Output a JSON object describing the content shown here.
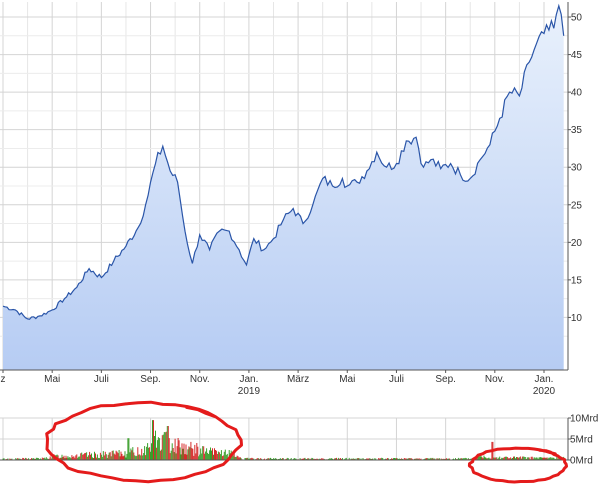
{
  "chart_data": [
    {
      "type": "area",
      "xlabel": "",
      "ylabel": "",
      "ylim": [
        3,
        52
      ],
      "x_tick_labels": [
        {
          "label": "z",
          "pos": 0.0
        },
        {
          "label": "Mai",
          "pos": 1.0
        },
        {
          "label": "Juli",
          "pos": 2.0
        },
        {
          "label": "Sep.",
          "pos": 3.0
        },
        {
          "label": "Nov.",
          "pos": 4.0
        },
        {
          "label": "Jan.",
          "year": "2019",
          "pos": 5.0
        },
        {
          "label": "März",
          "pos": 6.0
        },
        {
          "label": "Mai",
          "pos": 7.0
        },
        {
          "label": "Juli",
          "pos": 8.0
        },
        {
          "label": "Sep.",
          "pos": 9.0
        },
        {
          "label": "Nov.",
          "pos": 10.0
        },
        {
          "label": "Jan.",
          "year": "2020",
          "pos": 11.0
        }
      ],
      "y_ticks": [
        10,
        15,
        20,
        25,
        30,
        35,
        40,
        45,
        50
      ],
      "grid": true,
      "series": [
        {
          "points": [
            [
              0.0,
              11.5
            ],
            [
              0.25,
              11.0
            ],
            [
              0.5,
              9.8
            ],
            [
              0.75,
              10.2
            ],
            [
              1.0,
              11.0
            ],
            [
              1.25,
              12.5
            ],
            [
              1.5,
              14.0
            ],
            [
              1.75,
              16.5
            ],
            [
              2.0,
              15.3
            ],
            [
              2.25,
              17.5
            ],
            [
              2.5,
              19.5
            ],
            [
              2.75,
              22.0
            ],
            [
              2.9,
              25.0
            ],
            [
              3.1,
              30.5
            ],
            [
              3.25,
              32.8
            ],
            [
              3.4,
              29.5
            ],
            [
              3.55,
              28.0
            ],
            [
              3.7,
              21.5
            ],
            [
              3.85,
              17.2
            ],
            [
              4.0,
              21.0
            ],
            [
              4.2,
              19.0
            ],
            [
              4.4,
              21.5
            ],
            [
              4.6,
              21.5
            ],
            [
              4.8,
              19.0
            ],
            [
              4.95,
              17.0
            ],
            [
              5.1,
              20.5
            ],
            [
              5.3,
              19.0
            ],
            [
              5.5,
              20.5
            ],
            [
              5.7,
              23.0
            ],
            [
              5.9,
              24.5
            ],
            [
              6.1,
              22.5
            ],
            [
              6.3,
              25.0
            ],
            [
              6.5,
              28.5
            ],
            [
              6.7,
              27.5
            ],
            [
              6.9,
              28.5
            ],
            [
              7.0,
              27.5
            ],
            [
              7.2,
              28.0
            ],
            [
              7.4,
              29.5
            ],
            [
              7.6,
              32.0
            ],
            [
              7.8,
              30.0
            ],
            [
              8.0,
              30.5
            ],
            [
              8.2,
              33.5
            ],
            [
              8.4,
              34.0
            ],
            [
              8.55,
              30.0
            ],
            [
              8.7,
              31.0
            ],
            [
              8.9,
              29.8
            ],
            [
              9.1,
              30.5
            ],
            [
              9.3,
              29.0
            ],
            [
              9.5,
              28.5
            ],
            [
              9.7,
              31.0
            ],
            [
              9.9,
              33.0
            ],
            [
              10.1,
              36.5
            ],
            [
              10.3,
              40.0
            ],
            [
              10.5,
              39.5
            ],
            [
              10.7,
              44.0
            ],
            [
              10.85,
              46.5
            ],
            [
              11.0,
              47.8
            ],
            [
              11.2,
              48.5
            ],
            [
              11.3,
              51.5
            ],
            [
              11.4,
              47.5
            ]
          ]
        }
      ]
    },
    {
      "type": "bar",
      "xlabel": "",
      "ylabel": "",
      "ylim": [
        0,
        10
      ],
      "y_tick_labels": [
        {
          "label": "10Mrd",
          "value": 10
        },
        {
          "label": "5Mrd",
          "value": 5
        },
        {
          "label": "0Mrd",
          "value": 0
        }
      ],
      "profile": [
        [
          0.0,
          0.25
        ],
        [
          0.85,
          0.35
        ],
        [
          1.0,
          0.8
        ],
        [
          1.5,
          1.0
        ],
        [
          2.0,
          1.2
        ],
        [
          2.4,
          1.4
        ],
        [
          2.8,
          2.0
        ],
        [
          3.0,
          3.0
        ],
        [
          3.2,
          4.0
        ],
        [
          3.35,
          5.0
        ],
        [
          3.5,
          3.6
        ],
        [
          3.8,
          2.6
        ],
        [
          4.2,
          1.8
        ],
        [
          4.5,
          1.6
        ],
        [
          4.75,
          1.1
        ],
        [
          4.85,
          0.3
        ],
        [
          9.55,
          0.3
        ],
        [
          9.65,
          0.8
        ],
        [
          10.0,
          0.6
        ],
        [
          10.5,
          0.5
        ],
        [
          11.0,
          0.45
        ],
        [
          11.45,
          0.45
        ]
      ],
      "spikes": [
        [
          2.55,
          5.2
        ],
        [
          3.05,
          9.5
        ],
        [
          3.35,
          8.1
        ],
        [
          3.1,
          7.0
        ],
        [
          9.95,
          4.3
        ]
      ],
      "colors": {
        "up": "#3a9e2a",
        "down": "#d62b2b"
      }
    }
  ],
  "colors": {
    "line": "#2a55a8",
    "fill_top": "#e9f1fc",
    "fill_bottom": "#b6ccf3",
    "grid": "#d4d4d4",
    "axis": "#555555",
    "annotation": "#e41b1b"
  },
  "annotations": [
    {
      "kind": "ellipse",
      "target": "volume",
      "from": 0.9,
      "to": 4.8
    },
    {
      "kind": "ellipse",
      "target": "volume",
      "from": 9.5,
      "to": 11.45
    }
  ]
}
